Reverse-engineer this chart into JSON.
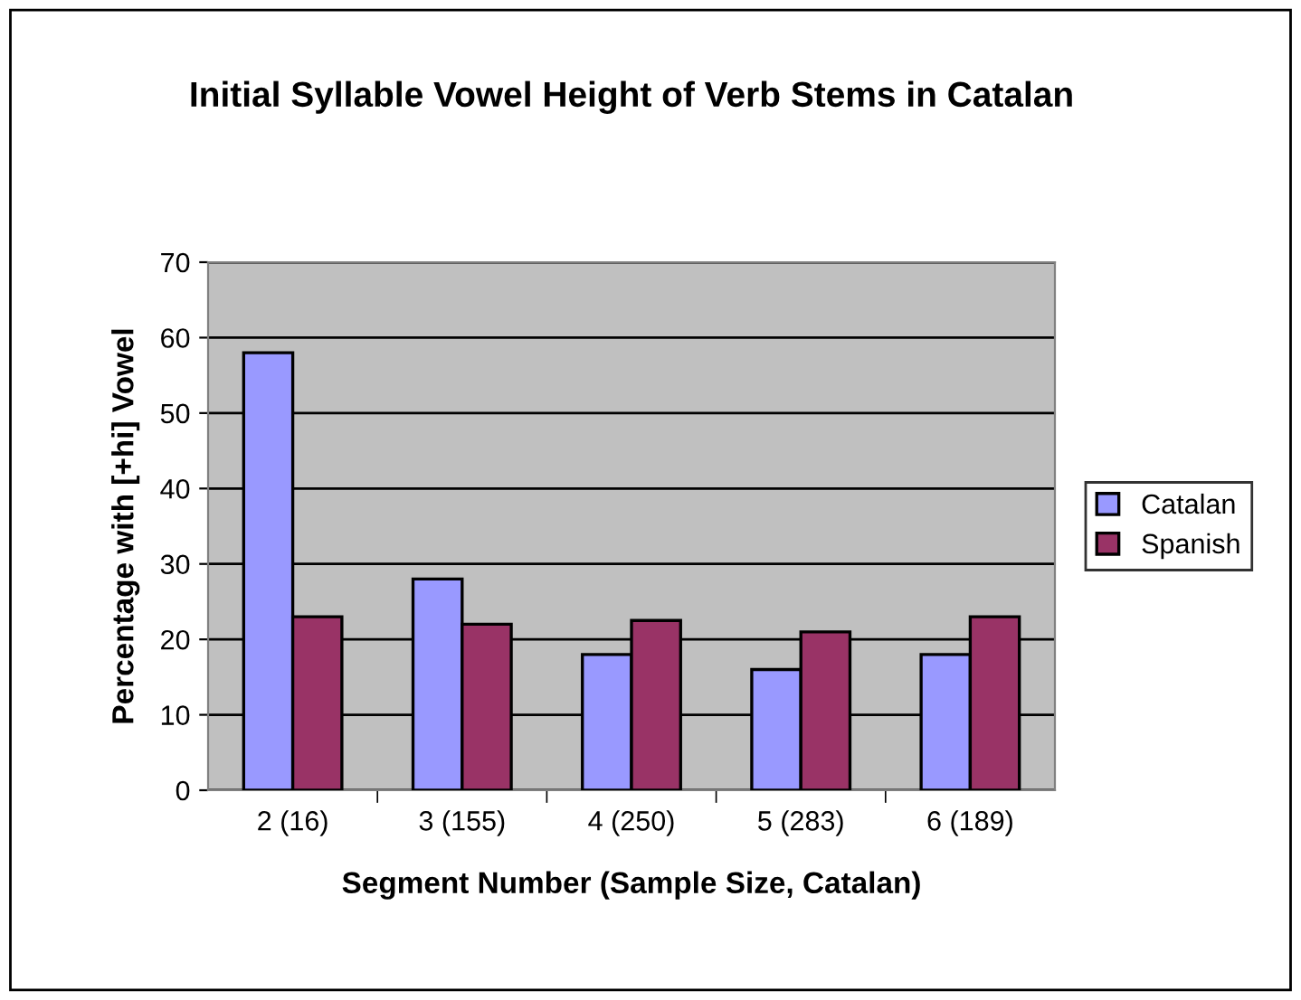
{
  "chart_data": {
    "type": "bar",
    "title": "Initial Syllable Vowel Height of Verb Stems in Catalan",
    "xlabel": "Segment Number (Sample Size, Catalan)",
    "ylabel": "Percentage with [+hi] Vowel",
    "categories": [
      "2 (16)",
      "3 (155)",
      "4 (250)",
      "5 (283)",
      "6 (189)"
    ],
    "series": [
      {
        "name": "Catalan",
        "color": "#9999ff",
        "values": [
          58,
          28,
          18,
          16,
          18
        ]
      },
      {
        "name": "Spanish",
        "color": "#993366",
        "values": [
          23,
          22,
          22.5,
          21,
          23
        ]
      }
    ],
    "ylim": [
      0,
      70
    ],
    "yticks": [
      0,
      10,
      20,
      30,
      40,
      50,
      60,
      70
    ],
    "grid": "y",
    "legend": "right"
  }
}
